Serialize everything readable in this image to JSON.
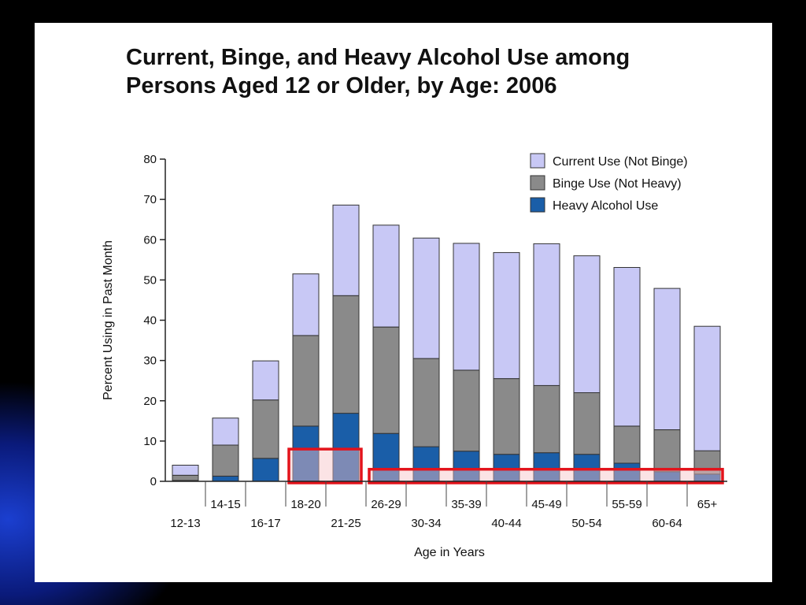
{
  "colors": {
    "current": "#c8c8f5",
    "binge": "#8a8a8a",
    "heavy": "#1a5ea8",
    "highlight_fill": "#f7c0c6",
    "highlight_stroke": "#e3131b"
  },
  "chart_data": {
    "type": "bar",
    "stacked": true,
    "title": "Current, Binge, and Heavy Alcohol Use among Persons Aged 12 or Older, by Age: 2006",
    "title_lines": [
      "Current, Binge, and Heavy Alcohol Use among",
      "Persons Aged 12 or Older, by Age: 2006"
    ],
    "xlabel": "Age in Years",
    "ylabel": "Percent Using in Past Month",
    "ylim": [
      0,
      80
    ],
    "yticks": [
      0,
      10,
      20,
      30,
      40,
      50,
      60,
      70,
      80
    ],
    "categories": [
      "12-13",
      "14-15",
      "16-17",
      "18-20",
      "21-25",
      "26-29",
      "30-34",
      "35-39",
      "40-44",
      "45-49",
      "50-54",
      "55-59",
      "60-64",
      "65+"
    ],
    "legend_position": "top-right",
    "series": [
      {
        "name": "Heavy Alcohol Use",
        "key": "heavy",
        "values": [
          0.2,
          1.3,
          5.7,
          13.7,
          16.9,
          11.9,
          8.6,
          7.5,
          6.7,
          7.1,
          6.7,
          4.5,
          2.4,
          1.8
        ]
      },
      {
        "name": "Binge Use (Not Heavy)",
        "key": "binge",
        "values": [
          1.3,
          7.7,
          14.5,
          22.5,
          29.2,
          26.4,
          21.9,
          20.1,
          18.8,
          16.7,
          15.3,
          9.2,
          10.4,
          5.8
        ]
      },
      {
        "name": "Current Use (Not Binge)",
        "key": "current",
        "values": [
          2.5,
          6.7,
          9.7,
          15.3,
          22.5,
          25.3,
          29.9,
          31.5,
          31.3,
          35.2,
          34.0,
          39.4,
          35.1,
          30.9
        ]
      }
    ],
    "legend_order": [
      "current",
      "binge",
      "heavy"
    ],
    "highlights": [
      {
        "from": "18-20",
        "to": "21-25",
        "ymax": 8
      },
      {
        "from": "26-29",
        "to": "65+",
        "ymax": 3
      }
    ]
  }
}
